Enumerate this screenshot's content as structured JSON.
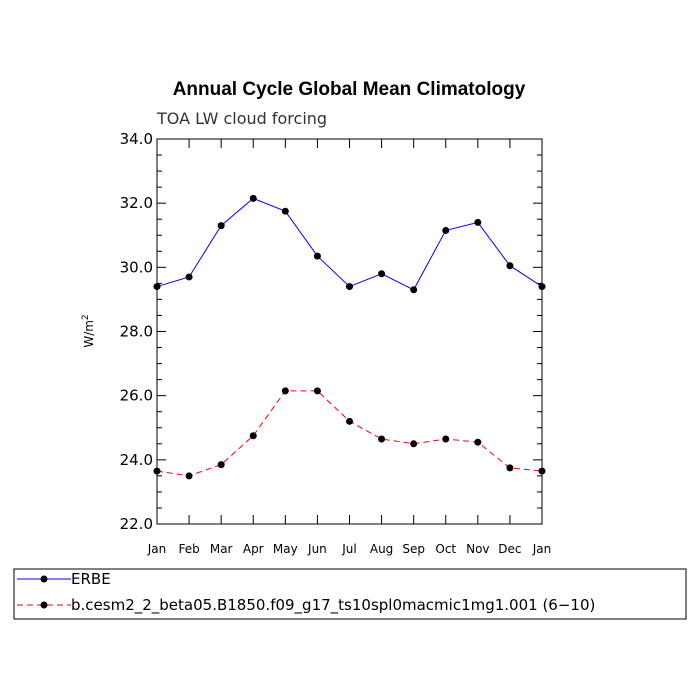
{
  "chart_data": {
    "type": "line",
    "title": "Annual Cycle Global Mean Climatology",
    "subtitle": "TOA LW cloud forcing",
    "ylabel": "W/m",
    "ylabel_sup": "2",
    "xlabel": "",
    "ylim": [
      22.0,
      34.0
    ],
    "yticks": [
      "22.0",
      "24.0",
      "26.0",
      "28.0",
      "30.0",
      "32.0",
      "34.0"
    ],
    "categories": [
      "Jan",
      "Feb",
      "Mar",
      "Apr",
      "May",
      "Jun",
      "Jul",
      "Aug",
      "Sep",
      "Oct",
      "Nov",
      "Dec",
      "Jan"
    ],
    "series": [
      {
        "name": "ERBE",
        "color": "#0000ff",
        "dash": "solid",
        "values": [
          29.4,
          29.7,
          31.3,
          32.15,
          31.75,
          30.35,
          29.4,
          29.8,
          29.3,
          31.15,
          31.4,
          30.05,
          29.4
        ]
      },
      {
        "name": "b.cesm2_2_beta05.B1850.f09_g17_ts10spl0macmic1mg1.001 (6−10)",
        "color": "#ff0000",
        "dash": "dashed",
        "values": [
          23.65,
          23.5,
          23.85,
          24.75,
          26.15,
          26.15,
          25.2,
          24.65,
          24.5,
          24.65,
          24.55,
          23.75,
          23.65
        ]
      }
    ],
    "grid": false,
    "legend_position": "bottom"
  }
}
